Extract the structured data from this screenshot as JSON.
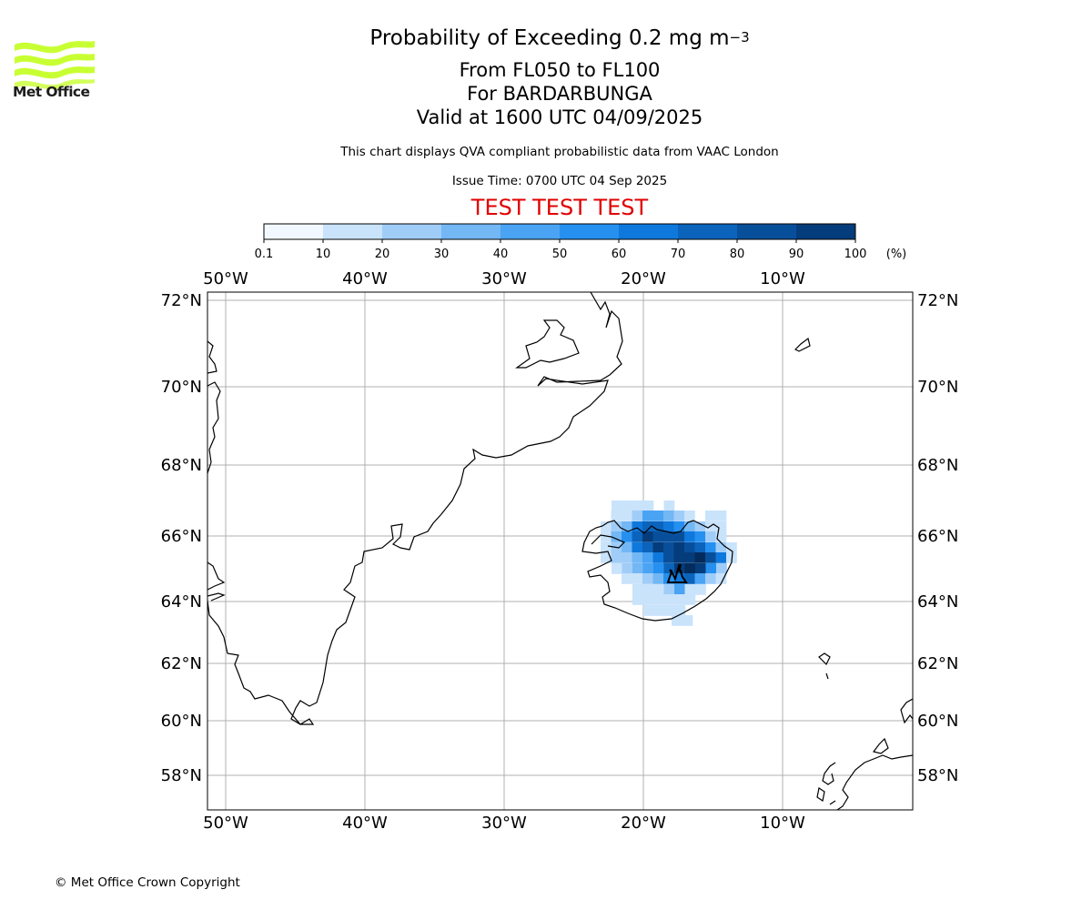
{
  "header": {
    "title_main": "Probability of Exceeding 0.2 mg m",
    "title_superscript": "−3",
    "level_range": "From FL050 to FL100",
    "volcano": "For BARDARBUNGA",
    "valid_time": "Valid at 1600 UTC 04/09/2025",
    "note": "This chart displays QVA compliant probabilistic data from VAAC London",
    "issue_time": "Issue Time: 0700 UTC 04 Sep 2025",
    "test_banner": "TEST TEST TEST"
  },
  "logo": {
    "text": "Met Office",
    "color": "#c8ff32"
  },
  "colorbar": {
    "tick_labels": [
      "0.1",
      "10",
      "20",
      "30",
      "40",
      "50",
      "60",
      "70",
      "80",
      "90",
      "100"
    ],
    "unit": "(%)",
    "colors": [
      "#f2f8ff",
      "#c9e3fb",
      "#a0cdf8",
      "#73b7f5",
      "#4aa3f3",
      "#2590ef",
      "#0f78dc",
      "#0b63bc",
      "#084f9b",
      "#053c7b",
      "#032c5c"
    ]
  },
  "map": {
    "lon_labels": [
      "50°W",
      "40°W",
      "30°W",
      "20°W",
      "10°W"
    ],
    "lat_labels": [
      "72°N",
      "70°N",
      "68°N",
      "66°N",
      "64°N",
      "62°N",
      "60°N",
      "58°N"
    ],
    "volcano_icon": "volcano-icon"
  },
  "footer": {
    "copyright": "© Met Office Crown Copyright"
  }
}
